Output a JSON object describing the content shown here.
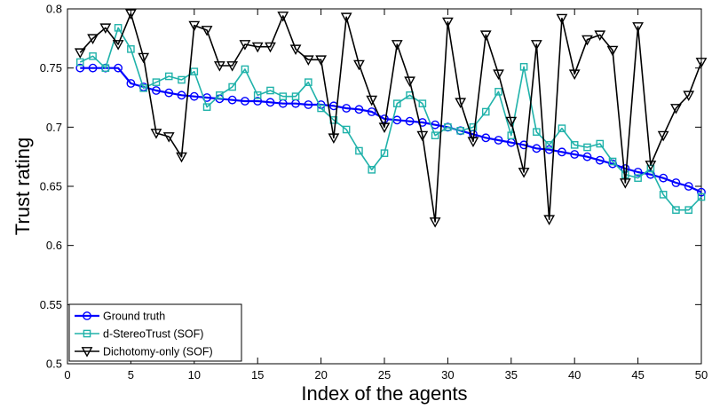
{
  "chart_data": {
    "type": "line",
    "xlabel": "Index of the agents",
    "ylabel": "Trust rating",
    "xlim": [
      0,
      50
    ],
    "ylim": [
      0.5,
      0.8
    ],
    "xticks": [
      "0",
      "5",
      "10",
      "15",
      "20",
      "25",
      "30",
      "35",
      "40",
      "45",
      "50"
    ],
    "yticks": [
      "0.5",
      "0.55",
      "0.6",
      "0.65",
      "0.7",
      "0.75",
      "0.8"
    ],
    "legend_position": "bottom-left",
    "grid": false,
    "x": [
      1,
      2,
      3,
      4,
      5,
      6,
      7,
      8,
      9,
      10,
      11,
      12,
      13,
      14,
      15,
      16,
      17,
      18,
      19,
      20,
      21,
      22,
      23,
      24,
      25,
      26,
      27,
      28,
      29,
      30,
      31,
      32,
      33,
      34,
      35,
      36,
      37,
      38,
      39,
      40,
      41,
      42,
      43,
      44,
      45,
      46,
      47,
      48,
      49,
      50
    ],
    "series": [
      {
        "name": "Ground truth",
        "color": "#0000ff",
        "marker": "circle",
        "values": [
          0.75,
          0.75,
          0.75,
          0.75,
          0.737,
          0.734,
          0.731,
          0.729,
          0.727,
          0.726,
          0.725,
          0.724,
          0.723,
          0.722,
          0.722,
          0.721,
          0.72,
          0.72,
          0.719,
          0.719,
          0.718,
          0.716,
          0.715,
          0.713,
          0.707,
          0.706,
          0.705,
          0.704,
          0.702,
          0.7,
          0.697,
          0.694,
          0.691,
          0.689,
          0.687,
          0.685,
          0.682,
          0.681,
          0.679,
          0.677,
          0.675,
          0.672,
          0.669,
          0.665,
          0.662,
          0.66,
          0.657,
          0.653,
          0.65,
          0.645
        ]
      },
      {
        "name": "d-StereoTrust (SOF)",
        "color": "#20b2aa",
        "marker": "square",
        "values": [
          0.755,
          0.76,
          0.75,
          0.784,
          0.766,
          0.733,
          0.738,
          0.743,
          0.74,
          0.747,
          0.717,
          0.727,
          0.734,
          0.749,
          0.727,
          0.731,
          0.726,
          0.726,
          0.738,
          0.716,
          0.706,
          0.698,
          0.68,
          0.664,
          0.678,
          0.72,
          0.727,
          0.72,
          0.693,
          0.7,
          0.697,
          0.7,
          0.713,
          0.73,
          0.693,
          0.751,
          0.696,
          0.685,
          0.699,
          0.685,
          0.683,
          0.686,
          0.671,
          0.66,
          0.657,
          0.665,
          0.643,
          0.63,
          0.63,
          0.641
        ]
      },
      {
        "name": "Dichotomy-only (SOF)",
        "color": "#000000",
        "marker": "triangle-down",
        "values": [
          0.763,
          0.775,
          0.784,
          0.77,
          0.796,
          0.759,
          0.695,
          0.692,
          0.675,
          0.786,
          0.782,
          0.752,
          0.752,
          0.77,
          0.768,
          0.768,
          0.794,
          0.766,
          0.757,
          0.757,
          0.691,
          0.793,
          0.753,
          0.723,
          0.7,
          0.77,
          0.739,
          0.693,
          0.62,
          0.789,
          0.721,
          0.688,
          0.778,
          0.745,
          0.705,
          0.662,
          0.77,
          0.622,
          0.792,
          0.745,
          0.774,
          0.778,
          0.765,
          0.653,
          0.785,
          0.668,
          0.693,
          0.716,
          0.727,
          0.755
        ]
      }
    ]
  }
}
